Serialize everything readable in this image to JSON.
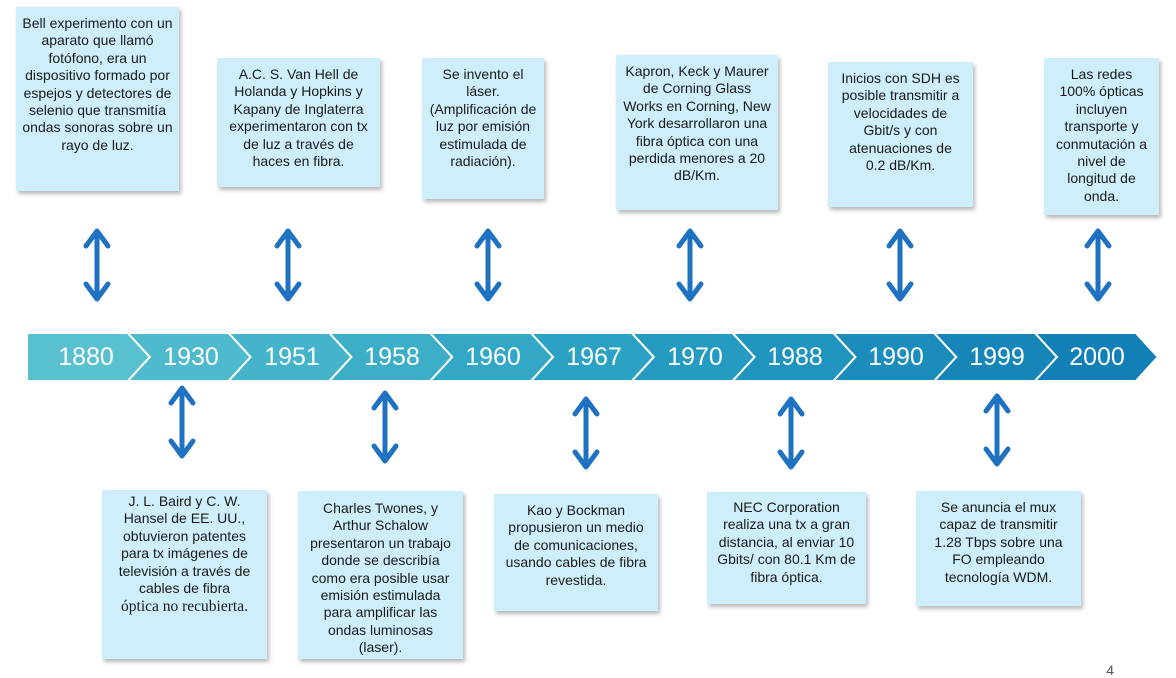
{
  "years": [
    "1880",
    "1930",
    "1951",
    "1958",
    "1960",
    "1967",
    "1970",
    "1988",
    "1990",
    "1999",
    "2000"
  ],
  "colors": {
    "box_fill": "#cdeefa",
    "arrow": "#1f72c2",
    "chevrons": [
      "#58c0cf",
      "#4fbacd",
      "#45b3ca",
      "#3caec8",
      "#33a8c6",
      "#2ba2c4",
      "#259bc2",
      "#1f94bf",
      "#1a8dbc",
      "#1686b9",
      "#127fb6"
    ]
  },
  "top_events": [
    {
      "text": "Bell experimento con un aparato que llamó fotófono, era un dispositivo formado por espejos y detectores de selenio que transmitía ondas sonoras sobre un rayo de luz."
    },
    {
      "text": "A.C. S. Van Hell de Holanda y Hopkins y Kapany de Inglaterra experimentaron con tx de luz a través de haces en fibra."
    },
    {
      "text": "Se invento el láser. (Amplificación de luz por emisión estimulada de radiación)."
    },
    {
      "text": "Kapron, Keck y Maurer de Corning Glass Works en Corning, New York desarrollaron una fibra óptica con una perdida menores a 20 dB/Km."
    },
    {
      "text": "Inicios con SDH es posible transmitir a velocidades de Gbit/s y con atenuaciones de 0.2 dB/Km."
    },
    {
      "text": "Las redes 100% ópticas incluyen transporte y conmutación a nivel de longitud de onda."
    }
  ],
  "bottom_events": [
    {
      "text": "J. L. Baird y C. W. Hansel de EE. UU., obtuvieron patentes para tx imágenes de televisión a través de cables de fibra",
      "text_serif": "óptica no recubierta."
    },
    {
      "text": "Charles Twones, y Arthur Schalow presentaron un trabajo donde se describía como era posible usar emisión estimulada para amplificar las ondas luminosas (laser)."
    },
    {
      "text": "Kao y Bockman propusieron un medio de comunicaciones, usando cables de fibra revestida."
    },
    {
      "text": "NEC Corporation realiza una tx a gran distancia, al enviar 10 Gbits/ con 80.1 Km de fibra óptica."
    },
    {
      "text": "Se anuncia el mux capaz de transmitir 1.28 Tbps sobre una FO empleando tecnología WDM."
    }
  ],
  "page_number": "4"
}
